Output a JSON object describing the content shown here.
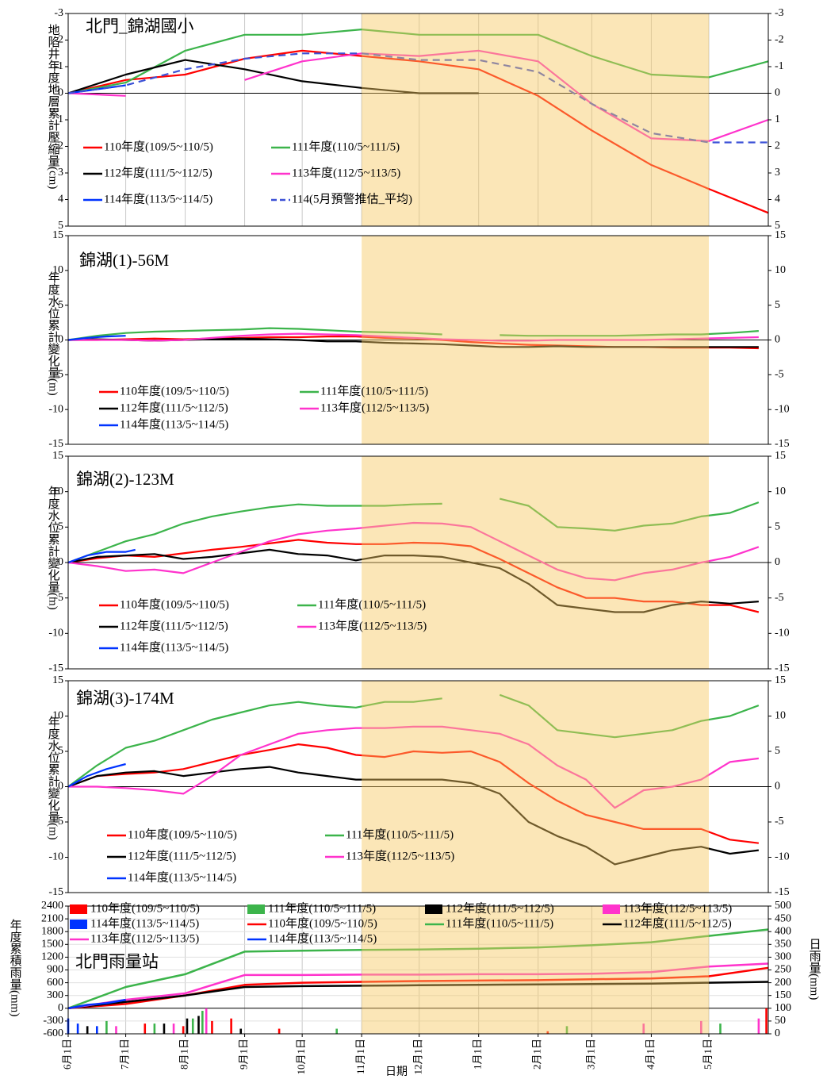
{
  "chart_data": [
    {
      "type": "line",
      "title": "北門_錦湖國小",
      "y_label": "地陷井年度地層累計壓縮量(cm)",
      "x": [
        0,
        30,
        61,
        92,
        122,
        153,
        183,
        214,
        245,
        273,
        304,
        334,
        365
      ],
      "xlim": [
        0,
        365
      ],
      "ylim": [
        5,
        -3
      ],
      "yticks": [
        -3,
        -2,
        -1,
        0,
        1,
        2,
        3,
        4,
        5
      ],
      "negative_tick_color": "#ff0000",
      "grid": true,
      "shade": {
        "from": 153,
        "to": 334,
        "color": "#f6c85f"
      },
      "series": [
        {
          "name": "110年度(109/5~110/5)",
          "color": "#ff0000",
          "values": [
            0,
            -0.5,
            -0.7,
            -1.3,
            -1.6,
            -1.4,
            -1.2,
            -0.9,
            0.1,
            1.4,
            2.7,
            3.6,
            4.5
          ]
        },
        {
          "name": "111年度(110/5~111/5)",
          "color": "#3cb44b",
          "values": [
            0,
            -0.4,
            -1.6,
            -2.2,
            -2.2,
            -2.4,
            -2.2,
            -2.2,
            -2.2,
            -1.4,
            -0.7,
            -0.6,
            -1.2
          ]
        },
        {
          "name": "112年度(111/5~112/5)",
          "color": "#000000",
          "x": [
            0,
            30,
            61,
            92,
            122,
            153,
            183,
            214
          ],
          "values": [
            0,
            -0.7,
            -1.25,
            -0.9,
            -0.45,
            -0.2,
            0,
            0
          ]
        },
        {
          "name": "113年度(112/5~113/5)",
          "color": "#ff33cc",
          "values": [
            0,
            0.1,
            null,
            -0.5,
            -1.2,
            -1.5,
            -1.4,
            -1.6,
            -1.2,
            0.4,
            1.7,
            1.8,
            1.0
          ]
        },
        {
          "name": "114年度(113/5~114/5)",
          "color": "#0033ff",
          "x": [
            0,
            30
          ],
          "values": [
            0,
            -0.3
          ]
        },
        {
          "name": "114(5月預警推估_平均)",
          "color": "#3b50d6",
          "dashed": true,
          "values": [
            0,
            -0.3,
            -0.9,
            -1.3,
            -1.5,
            -1.5,
            -1.25,
            -1.25,
            -0.8,
            0.4,
            1.5,
            1.85,
            1.85
          ]
        }
      ]
    },
    {
      "type": "line",
      "title": "錦湖(1)-56M",
      "y_label": "年度水位累計變化量(m)",
      "x": [
        0,
        15,
        30,
        45,
        60,
        75,
        90,
        105,
        120,
        135,
        150,
        165,
        180,
        195,
        210,
        225,
        240,
        255,
        270,
        285,
        300,
        315,
        330,
        345,
        360
      ],
      "xlim": [
        0,
        365
      ],
      "ylim": [
        -15,
        15
      ],
      "yticks": [
        -15,
        -10,
        -5,
        0,
        5,
        10,
        15
      ],
      "shade": {
        "from": 153,
        "to": 334,
        "color": "#f6c85f"
      },
      "series": [
        {
          "name": "110年度(109/5~110/5)",
          "color": "#ff0000",
          "values": [
            0,
            0,
            0.1,
            0.2,
            0.1,
            0.2,
            0.3,
            0.4,
            0.4,
            0.5,
            0.5,
            0.3,
            0.2,
            0,
            -0.3,
            -0.5,
            -0.7,
            -0.8,
            -0.9,
            -1,
            -1,
            -1.1,
            -1.1,
            -1.1,
            -1.2
          ]
        },
        {
          "name": "111年度(110/5~111/5)",
          "color": "#3cb44b",
          "values": [
            0,
            0.6,
            1.0,
            1.2,
            1.3,
            1.4,
            1.5,
            1.7,
            1.6,
            1.4,
            1.2,
            1.1,
            1.0,
            0.8,
            null,
            0.7,
            0.6,
            0.6,
            0.6,
            0.6,
            0.7,
            0.8,
            0.8,
            1.0,
            1.3
          ]
        },
        {
          "name": "112年度(111/5~112/5)",
          "color": "#000000",
          "values": [
            0,
            0.1,
            0,
            -0.1,
            0,
            0.1,
            0.2,
            0.1,
            0,
            -0.2,
            -0.2,
            -0.4,
            -0.5,
            -0.6,
            -0.8,
            -1.0,
            -1.0,
            -0.9,
            -1.0,
            -1.0,
            -1.0,
            -1.0,
            -1.0,
            -1.0,
            -1.0
          ]
        },
        {
          "name": "113年度(112/5~113/5)",
          "color": "#ff33cc",
          "values": [
            0,
            0,
            0,
            -0.1,
            0,
            0.3,
            0.6,
            0.8,
            0.9,
            0.8,
            0.7,
            0.5,
            0.3,
            0.1,
            0,
            -0.1,
            -0.1,
            0,
            0,
            0,
            0,
            0.1,
            0.2,
            0.3,
            0.4
          ]
        },
        {
          "name": "114年度(113/5~114/5)",
          "color": "#0033ff",
          "x": [
            0,
            10,
            20,
            30
          ],
          "values": [
            0,
            0.3,
            0.5,
            0.6
          ]
        }
      ]
    },
    {
      "type": "line",
      "title": "錦湖(2)-123M",
      "y_label": "年度水位累計變化量(m)",
      "x": [
        0,
        15,
        30,
        45,
        60,
        75,
        90,
        105,
        120,
        135,
        150,
        165,
        180,
        195,
        210,
        225,
        240,
        255,
        270,
        285,
        300,
        315,
        330,
        345,
        360
      ],
      "xlim": [
        0,
        365
      ],
      "ylim": [
        -15,
        15
      ],
      "yticks": [
        -15,
        -10,
        -5,
        0,
        5,
        10,
        15
      ],
      "shade": {
        "from": 153,
        "to": 334,
        "color": "#f6c85f"
      },
      "series": [
        {
          "name": "110年度(109/5~110/5)",
          "color": "#ff0000",
          "values": [
            0,
            0.6,
            1.0,
            0.8,
            1.3,
            1.8,
            2.2,
            2.7,
            3.2,
            2.8,
            2.6,
            2.6,
            2.8,
            2.7,
            2.3,
            0.5,
            -1.5,
            -3.5,
            -5,
            -5,
            -5.5,
            -5.5,
            -6,
            -6,
            -7
          ]
        },
        {
          "name": "111年度(110/5~111/5)",
          "color": "#3cb44b",
          "values": [
            0,
            1.5,
            3,
            4,
            5.5,
            6.5,
            7.2,
            7.8,
            8.2,
            8.0,
            8.0,
            8.0,
            8.2,
            8.3,
            null,
            9.0,
            8.0,
            5,
            4.8,
            4.5,
            5.2,
            5.5,
            6.5,
            7.0,
            8.5
          ]
        },
        {
          "name": "112年度(111/5~112/5)",
          "color": "#000000",
          "values": [
            0,
            0.8,
            1.0,
            1.2,
            0.5,
            0.8,
            1.3,
            1.8,
            1.2,
            1.0,
            0.3,
            1.0,
            1.0,
            0.8,
            0,
            -0.8,
            -3,
            -6,
            -6.5,
            -7,
            -7,
            -6,
            -5.5,
            -5.8,
            -5.5
          ]
        },
        {
          "name": "113年度(112/5~113/5)",
          "color": "#ff33cc",
          "values": [
            0,
            -0.5,
            -1.2,
            -1,
            -1.5,
            0,
            1.5,
            3,
            4,
            4.5,
            4.8,
            5.2,
            5.6,
            5.5,
            5.0,
            3,
            1.0,
            -1,
            -2.2,
            -2.5,
            -1.5,
            -1,
            0,
            0.8,
            2.2
          ]
        },
        {
          "name": "114年度(113/5~114/5)",
          "color": "#0033ff",
          "x": [
            0,
            10,
            20,
            30,
            35
          ],
          "values": [
            0,
            1,
            1.5,
            1.5,
            1.8
          ]
        }
      ]
    },
    {
      "type": "line",
      "title": "錦湖(3)-174M",
      "y_label": "年度水位累計變化量(m)",
      "x": [
        0,
        15,
        30,
        45,
        60,
        75,
        90,
        105,
        120,
        135,
        150,
        165,
        180,
        195,
        210,
        225,
        240,
        255,
        270,
        285,
        300,
        315,
        330,
        345,
        360
      ],
      "xlim": [
        0,
        365
      ],
      "ylim": [
        -15,
        15
      ],
      "yticks": [
        -15,
        -10,
        -5,
        0,
        5,
        10,
        15
      ],
      "shade": {
        "from": 153,
        "to": 334,
        "color": "#f6c85f"
      },
      "series": [
        {
          "name": "110年度(109/5~110/5)",
          "color": "#ff0000",
          "values": [
            0,
            1.5,
            1.8,
            2.0,
            2.5,
            3.5,
            4.5,
            5.2,
            6,
            5.5,
            4.5,
            4.2,
            5.0,
            4.8,
            5.0,
            3.5,
            0.5,
            -2,
            -4,
            -5,
            -6,
            -6,
            -6,
            -7.5,
            -8
          ]
        },
        {
          "name": "111年度(110/5~111/5)",
          "color": "#3cb44b",
          "values": [
            0,
            3,
            5.5,
            6.5,
            8,
            9.5,
            10.5,
            11.5,
            12,
            11.5,
            11.2,
            12,
            12,
            12.5,
            null,
            13,
            11.5,
            8,
            7.5,
            7,
            7.5,
            8,
            9.3,
            10,
            11.5
          ]
        },
        {
          "name": "112年度(111/5~112/5)",
          "color": "#000000",
          "values": [
            0,
            1.5,
            2,
            2.2,
            1.5,
            2,
            2.5,
            2.8,
            2,
            1.5,
            1.0,
            1.0,
            1.0,
            1.0,
            0.5,
            -1,
            -5,
            -7,
            -8.5,
            -11,
            -10,
            -9,
            -8.5,
            -9.5,
            -9
          ]
        },
        {
          "name": "113年度(112/5~113/5)",
          "color": "#ff33cc",
          "values": [
            0,
            0,
            -0.2,
            -0.5,
            -1,
            1.5,
            4.5,
            6,
            7.5,
            8,
            8.3,
            8.3,
            8.5,
            8.5,
            8.0,
            7.5,
            6,
            3,
            1,
            -3,
            -0.5,
            0,
            1,
            3.5,
            4
          ]
        },
        {
          "name": "114年度(113/5~114/5)",
          "color": "#0033ff",
          "x": [
            0,
            10,
            20,
            30
          ],
          "values": [
            0,
            1.5,
            2.5,
            3.2
          ]
        }
      ]
    },
    {
      "type": "combo",
      "title": "北門雨量站",
      "y_label": "年度累積雨量(mm)",
      "y2_label": "日雨量(mm)",
      "x_label": "日期",
      "x": [
        0,
        30,
        61,
        92,
        122,
        153,
        183,
        214,
        245,
        273,
        304,
        334,
        365
      ],
      "xlim": [
        0,
        365
      ],
      "xticks": [
        {
          "value": 0,
          "label": "6月1日"
        },
        {
          "value": 30,
          "label": "7月1日"
        },
        {
          "value": 61,
          "label": "8月1日"
        },
        {
          "value": 92,
          "label": "9月1日"
        },
        {
          "value": 122,
          "label": "10月1日"
        },
        {
          "value": 153,
          "label": "11月1日"
        },
        {
          "value": 183,
          "label": "12月1日"
        },
        {
          "value": 214,
          "label": "1月1日"
        },
        {
          "value": 245,
          "label": "2月1日"
        },
        {
          "value": 273,
          "label": "3月1日"
        },
        {
          "value": 304,
          "label": "4月1日"
        },
        {
          "value": 334,
          "label": "5月1日"
        }
      ],
      "ylim": [
        -600,
        2400
      ],
      "yticks": [
        -600,
        -300,
        0,
        300,
        600,
        900,
        1200,
        1500,
        1800,
        2100,
        2400
      ],
      "y2lim": [
        0,
        500
      ],
      "y2ticks": [
        0,
        50,
        100,
        150,
        200,
        250,
        300,
        350,
        400,
        450,
        500
      ],
      "grid": true,
      "shade": {
        "from": 153,
        "to": 334,
        "color": "#f6c85f"
      },
      "series": [
        {
          "name": "110年度(109/5~110/5)",
          "type": "bar",
          "axis": "y2",
          "color": "#ff0000",
          "x": [
            40,
            60,
            75,
            85,
            110,
            250,
            364
          ],
          "values": [
            40,
            30,
            50,
            60,
            20,
            10,
            100
          ]
        },
        {
          "name": "111年度(110/5~111/5)",
          "type": "bar",
          "axis": "y2",
          "color": "#3cb44b",
          "x": [
            20,
            45,
            65,
            70,
            140,
            260,
            300,
            340
          ],
          "values": [
            50,
            40,
            60,
            90,
            20,
            30,
            20,
            40
          ]
        },
        {
          "name": "112年度(111/5~112/5)",
          "type": "bar",
          "axis": "y2",
          "color": "#000000",
          "x": [
            10,
            50,
            62,
            68,
            90
          ],
          "values": [
            30,
            40,
            60,
            70,
            20
          ]
        },
        {
          "name": "113年度(112/5~113/5)",
          "type": "bar",
          "axis": "y2",
          "color": "#ff33cc",
          "x": [
            25,
            55,
            72,
            300,
            330,
            360
          ],
          "values": [
            30,
            40,
            100,
            40,
            50,
            60
          ]
        },
        {
          "name": "114年度(113/5~114/5)",
          "type": "bar",
          "axis": "y2",
          "color": "#0033ff",
          "x": [
            0,
            5,
            15
          ],
          "values": [
            60,
            40,
            30
          ]
        },
        {
          "name": "110年度(109/5~110/5)",
          "type": "line",
          "color": "#ff0000",
          "values": [
            0,
            100,
            300,
            550,
            600,
            620,
            640,
            650,
            660,
            680,
            700,
            750,
            950
          ]
        },
        {
          "name": "111年度(110/5~111/5)",
          "type": "line",
          "color": "#3cb44b",
          "values": [
            0,
            500,
            800,
            1330,
            1350,
            1370,
            1380,
            1400,
            1430,
            1480,
            1550,
            1700,
            1850
          ]
        },
        {
          "name": "112年度(111/5~112/5)",
          "type": "line",
          "color": "#000000",
          "values": [
            0,
            150,
            300,
            500,
            520,
            530,
            540,
            550,
            560,
            570,
            580,
            600,
            620
          ]
        },
        {
          "name": "113年度(112/5~113/5)",
          "type": "line",
          "color": "#ff33cc",
          "values": [
            0,
            200,
            350,
            780,
            780,
            790,
            790,
            800,
            800,
            810,
            850,
            980,
            1050
          ]
        },
        {
          "name": "114年度(113/5~114/5)",
          "type": "line",
          "color": "#0033ff",
          "x": [
            0,
            10,
            20,
            30
          ],
          "values": [
            0,
            80,
            120,
            200
          ]
        }
      ]
    }
  ]
}
